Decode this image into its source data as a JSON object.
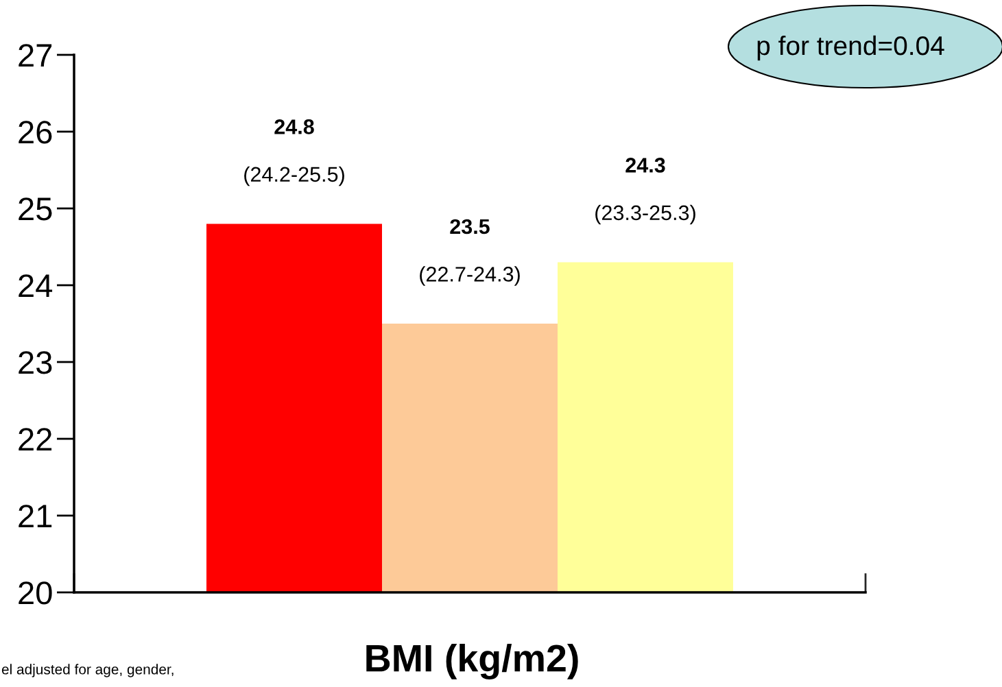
{
  "chart_data": {
    "type": "bar",
    "categories": [
      null,
      null,
      null
    ],
    "values": [
      24.8,
      23.5,
      24.3
    ],
    "colors": [
      "#ff0000",
      "#fdca98",
      "#ffff99"
    ],
    "value_labels": [
      "24.8\n(24.2-25.5)",
      "23.5\n(22.7-24.3)",
      "24.3\n(23.3-25.3)"
    ],
    "ylim": [
      20,
      27
    ],
    "yticks": [
      20,
      21,
      22,
      23,
      24,
      25,
      26,
      27
    ],
    "xlabel": "BMI (kg/m2)",
    "annotations": [
      "p for trend=0.04",
      "el adjusted for age, gender,"
    ],
    "grid": false
  }
}
